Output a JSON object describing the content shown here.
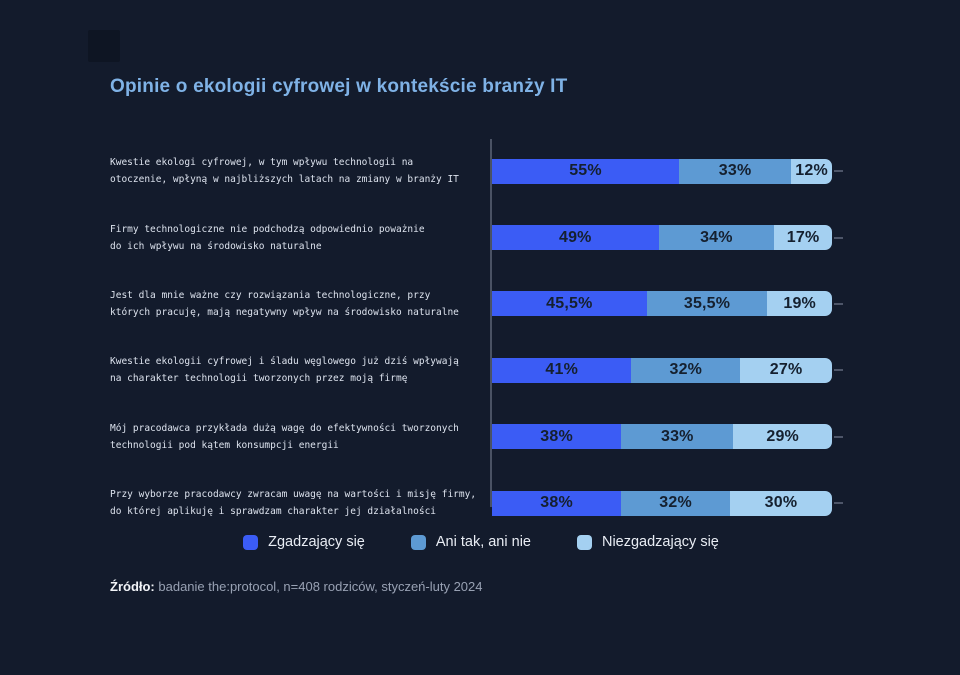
{
  "page": {
    "title": "Opinie o ekologii cyfrowej w kontekście branży IT",
    "background_color": "#131b2c",
    "title_color": "#7fb2e6"
  },
  "legend": [
    {
      "label": "Zgadzający się",
      "color": "#3b5cf5"
    },
    {
      "label": "Ani tak, ani nie",
      "color": "#5d9ad3"
    },
    {
      "label": "Niezgadzający się",
      "color": "#a4d0f1"
    }
  ],
  "source": {
    "prefix": "Źródło:",
    "text": " badanie the:protocol, n=408 rodziców, styczeń-luty 2024"
  },
  "chart_data": {
    "type": "bar",
    "orientation": "horizontal-stacked",
    "xlim": [
      0,
      100
    ],
    "grid": false,
    "legend_position": "bottom",
    "categories": [
      "Kwestie ekologi cyfrowej, w tym wpływu technologii na otoczenie, wpłyną w najbliższych latach na zmiany w branży IT",
      "Firmy technologiczne nie podchodzą odpowiednio poważnie do ich wpływu na środowisko naturalne",
      "Jest dla mnie ważne czy rozwiązania technologiczne, przy których pracuję, mają negatywny wpływ na środowisko naturalne",
      "Kwestie ekologii cyfrowej i śladu węglowego już dziś wpływają na charakter technologii tworzonych przez moją firmę",
      "Mój pracodawca przykłada dużą wagę do efektywności tworzonych technologii pod kątem konsumpcji energii",
      "Przy wyborze pracodawcy zwracam uwagę na wartości i misję firmy, do której aplikuję i sprawdzam charakter jej działalności"
    ],
    "category_lines": [
      [
        "Kwestie ekologi cyfrowej, w tym wpływu technologii na",
        "otoczenie, wpłyną w najbliższych latach na zmiany w branży IT"
      ],
      [
        "Firmy technologiczne nie podchodzą odpowiednio poważnie",
        "do ich wpływu na środowisko naturalne"
      ],
      [
        "Jest dla mnie ważne czy rozwiązania technologiczne, przy",
        "których pracuję, mają negatywny wpływ na środowisko naturalne"
      ],
      [
        "Kwestie ekologii cyfrowej i śladu węglowego już dziś wpływają",
        "na charakter technologii tworzonych przez moją firmę"
      ],
      [
        "Mój pracodawca przykłada dużą wagę do efektywności tworzonych",
        "technologii pod kątem konsumpcji energii"
      ],
      [
        "Przy wyborze pracodawcy zwracam uwagę na wartości i misję firmy,",
        "do której aplikuję i sprawdzam charakter jej działalności"
      ]
    ],
    "series": [
      {
        "name": "Zgadzający się",
        "color": "#3b5cf5",
        "values": [
          55,
          49,
          45.5,
          41,
          38,
          38
        ],
        "labels": [
          "55%",
          "49%",
          "45,5%",
          "41%",
          "38%",
          "38%"
        ]
      },
      {
        "name": "Ani tak, ani nie",
        "color": "#5d9ad3",
        "values": [
          33,
          34,
          35.5,
          32,
          33,
          32
        ],
        "labels": [
          "33%",
          "34%",
          "35,5%",
          "32%",
          "33%",
          "32%"
        ]
      },
      {
        "name": "Niezgadzający się",
        "color": "#a4d0f1",
        "values": [
          12,
          17,
          19,
          27,
          29,
          30
        ],
        "labels": [
          "12%",
          "17%",
          "19%",
          "27%",
          "29%",
          "30%"
        ]
      }
    ]
  }
}
